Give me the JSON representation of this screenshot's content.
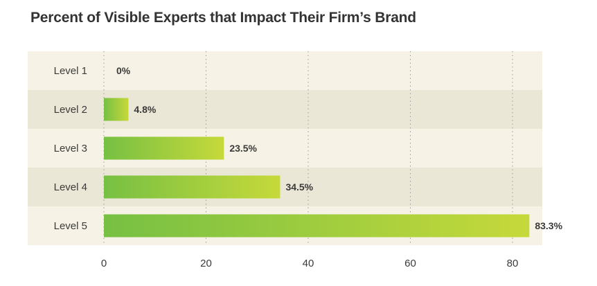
{
  "title": "Percent of Visible Experts that Impact Their Firm’s Brand",
  "colors": {
    "band_light": "#f6f3e6",
    "band_dark": "#ebe7d7",
    "bar_start": "#77c043",
    "bar_end": "#c6d93a",
    "grid": "#9a9a9a",
    "text": "#3a3a3a"
  },
  "chart_data": {
    "type": "bar",
    "orientation": "horizontal",
    "title": "Percent of Visible Experts that Impact Their Firm’s Brand",
    "categories": [
      "Level 1",
      "Level 2",
      "Level 3",
      "Level 4",
      "Level 5"
    ],
    "values": [
      0,
      4.8,
      23.5,
      34.5,
      83.3
    ],
    "value_labels": [
      "0%",
      "4.8%",
      "23.5%",
      "34.5%",
      "83.3%"
    ],
    "xlim": [
      0,
      84
    ],
    "x_ticks": [
      0,
      20,
      40,
      60,
      80
    ],
    "grid": "vertical dotted"
  }
}
